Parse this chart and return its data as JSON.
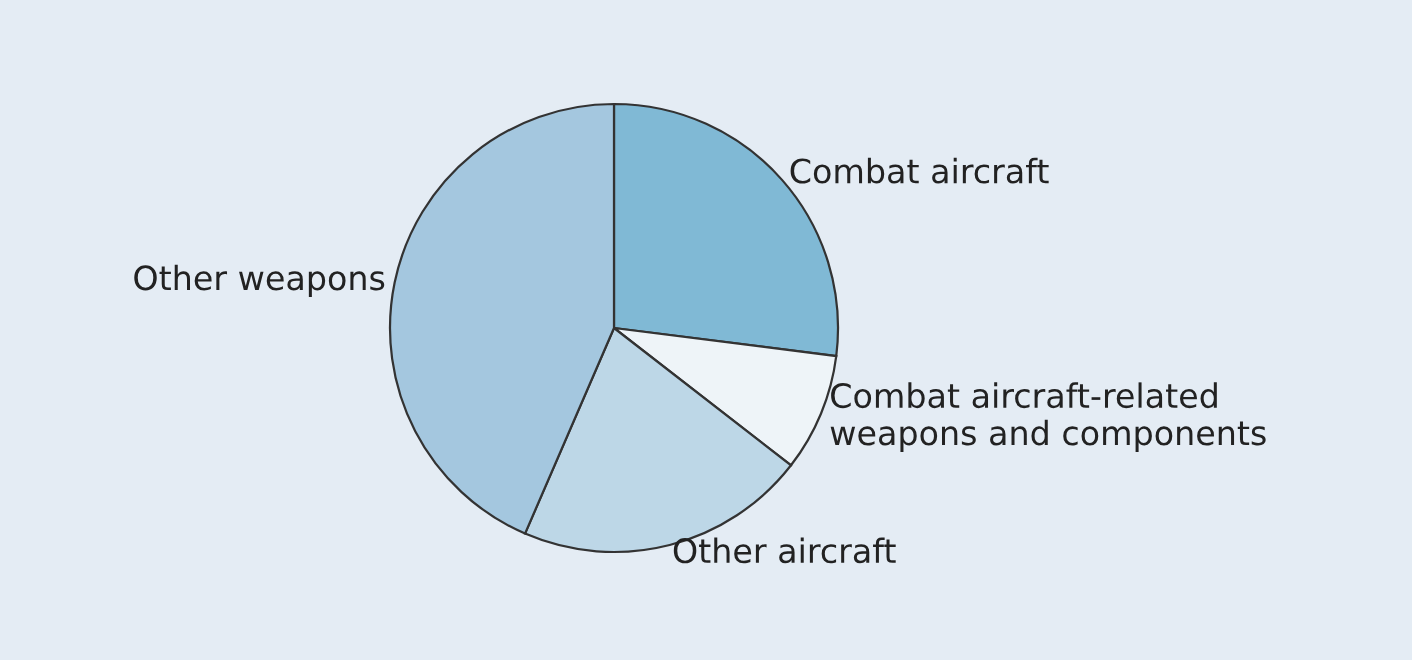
{
  "chart_data": {
    "type": "pie",
    "categories": [
      "Combat aircraft",
      "Combat aircraft-related weapons and components",
      "Other aircraft",
      "Other weapons"
    ],
    "values": [
      27,
      8.5,
      21,
      43.5
    ],
    "colors": [
      "#80b9d5",
      "#eef4f8",
      "#bdd7e7",
      "#a4c7df"
    ]
  }
}
